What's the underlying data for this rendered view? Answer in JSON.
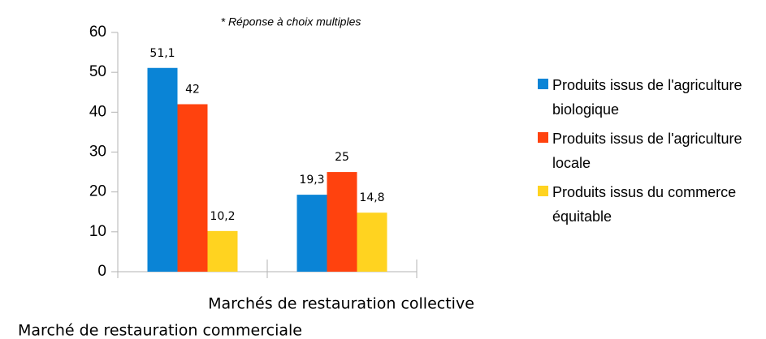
{
  "chart_data": {
    "type": "bar",
    "subtitle": "* Réponse à choix multiples",
    "categories": [
      "Marchés de restauration collective",
      "Marché de restauration commerciale"
    ],
    "series": [
      {
        "name": "Produits issus de l'agriculture biologique",
        "color": "#0a84d6",
        "values": [
          51.1,
          19.3
        ],
        "value_labels": [
          "51,1",
          "19,3"
        ]
      },
      {
        "name": "Produits issus de l'agriculture locale",
        "color": "#ff420e",
        "values": [
          42,
          25
        ],
        "value_labels": [
          "42",
          "25"
        ]
      },
      {
        "name": "Produits issus du commerce équitable",
        "color": "#ffd320",
        "values": [
          10.2,
          14.8
        ],
        "value_labels": [
          "10,2",
          "14,8"
        ]
      }
    ],
    "ylim": [
      0,
      60
    ],
    "yticks": [
      0,
      10,
      20,
      30,
      40,
      50,
      60
    ],
    "grid": false,
    "legend": "right"
  }
}
